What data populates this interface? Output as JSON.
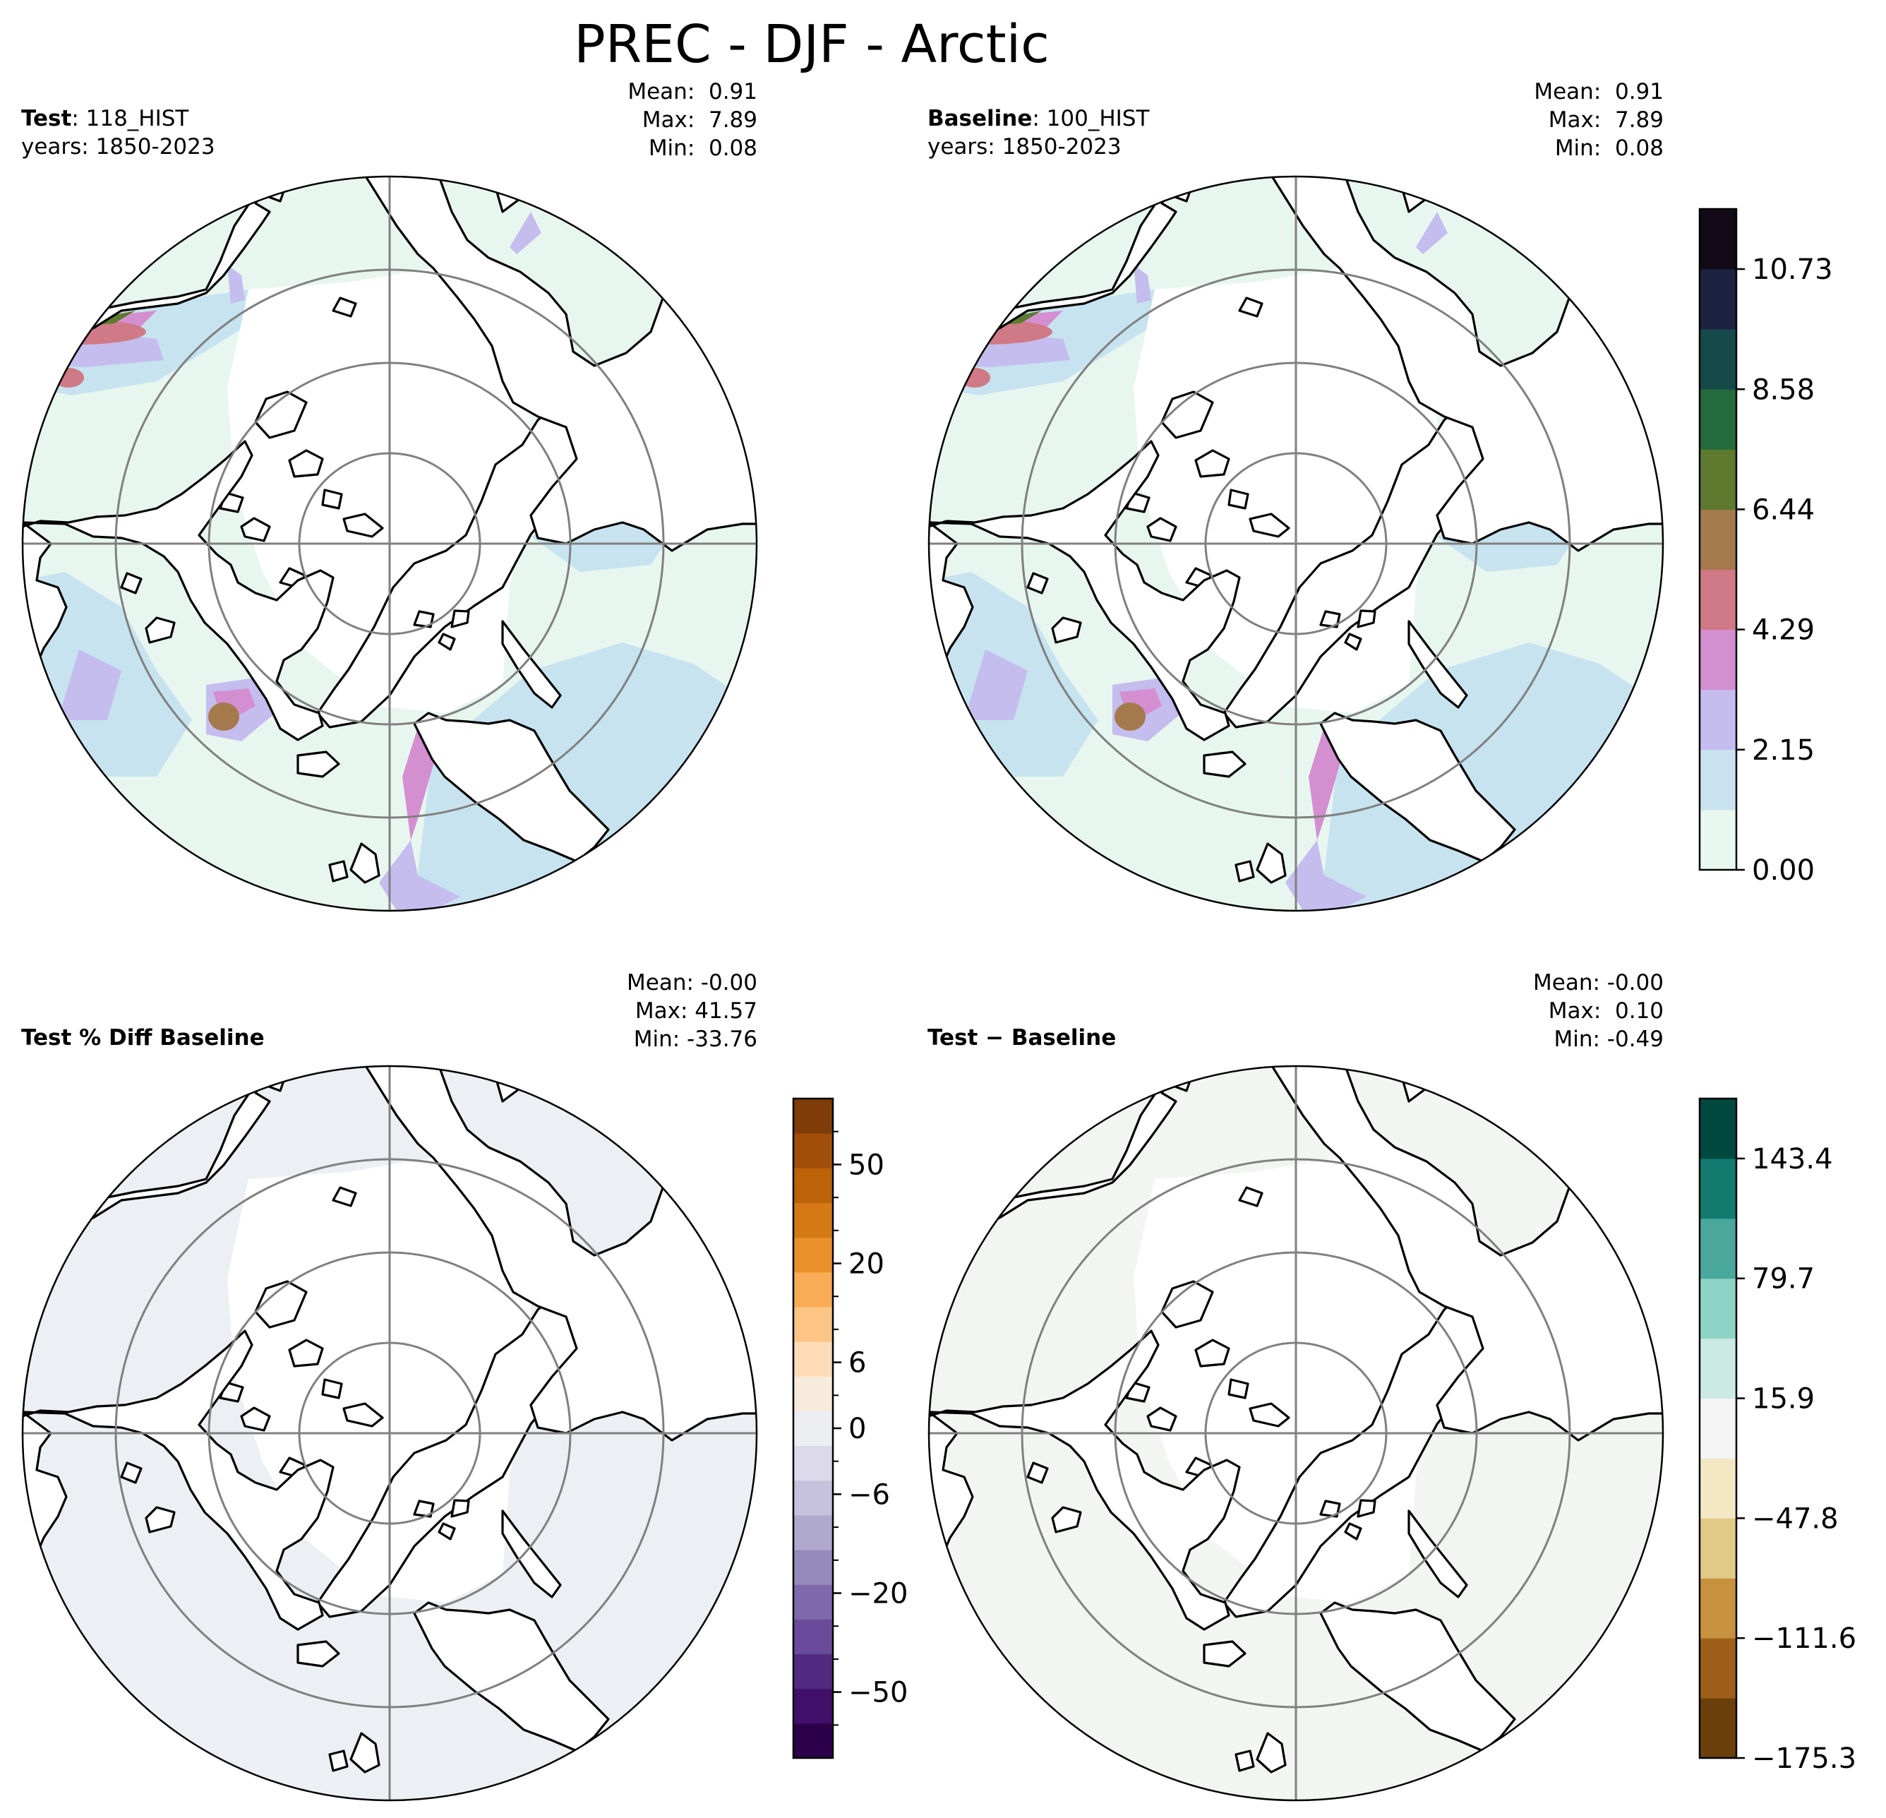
{
  "figure": {
    "title": "PREC - DJF - Arctic"
  },
  "chart_data": [
    {
      "type": "heatmap",
      "panel": "test",
      "label_bold": "Test",
      "label_rest": ": 118_HIST",
      "years": "years: 1850-2023",
      "stats": [
        "Mean:  0.91",
        "Max:  7.89",
        "Min:  0.08"
      ],
      "mean": 0.91,
      "max": 7.89,
      "min": 0.08
    },
    {
      "type": "heatmap",
      "panel": "baseline",
      "label_bold": "Baseline",
      "label_rest": ": 100_HIST",
      "years": "years: 1850-2023",
      "stats": [
        "Mean:  0.91",
        "Max:  7.89",
        "Min:  0.08"
      ],
      "mean": 0.91,
      "max": 7.89,
      "min": 0.08
    },
    {
      "type": "heatmap",
      "panel": "pct_diff",
      "label_bold": "Test % Diff Baseline",
      "stats": [
        "Mean: -0.00",
        "Max: 41.57",
        "Min: -33.76"
      ],
      "mean": -0.0,
      "max": 41.57,
      "min": -33.76
    },
    {
      "type": "heatmap",
      "panel": "diff",
      "label_bold": "Test − Baseline",
      "stats": [
        "Mean: -0.00",
        "Max:  0.10",
        "Min: -0.49"
      ],
      "mean": -0.0,
      "max": 0.1,
      "min": -0.49
    }
  ],
  "colorbars": {
    "main": {
      "ticks": [
        "0.00",
        "2.15",
        "4.29",
        "6.44",
        "8.58",
        "10.73"
      ],
      "colors": [
        "#e9f7f1",
        "#c8e3ef",
        "#c4bdee",
        "#d48fd0",
        "#cf7a86",
        "#a47a4c",
        "#5d7a2f",
        "#236a3c",
        "#164a4a",
        "#1c2340",
        "#130a18"
      ]
    },
    "pct": {
      "ticks": [
        "−50",
        "−20",
        "−6",
        "0",
        "6",
        "20",
        "50"
      ],
      "colors": [
        "#2d004b",
        "#40106b",
        "#532a82",
        "#6a4b9b",
        "#7f69ac",
        "#978abd",
        "#afa9cd",
        "#c6c2dd",
        "#dbd9ea",
        "#eceef2",
        "#f7ebdc",
        "#fddcb7",
        "#fdc585",
        "#f7ac55",
        "#ea912e",
        "#d57916",
        "#bc6209",
        "#a14f08",
        "#7f3b08"
      ],
      "side_ticks": 4
    },
    "diff": {
      "ticks": [
        "−175.3",
        "−111.6",
        "−47.8",
        "15.9",
        "79.7",
        "143.4"
      ],
      "colors": [
        "#6b400c",
        "#9e6018",
        "#c7913f",
        "#e1c987",
        "#f4e8c4",
        "#f4f5f4",
        "#cbeae4",
        "#8ed3c6",
        "#49a89b",
        "#137a70",
        "#01493f"
      ]
    }
  }
}
